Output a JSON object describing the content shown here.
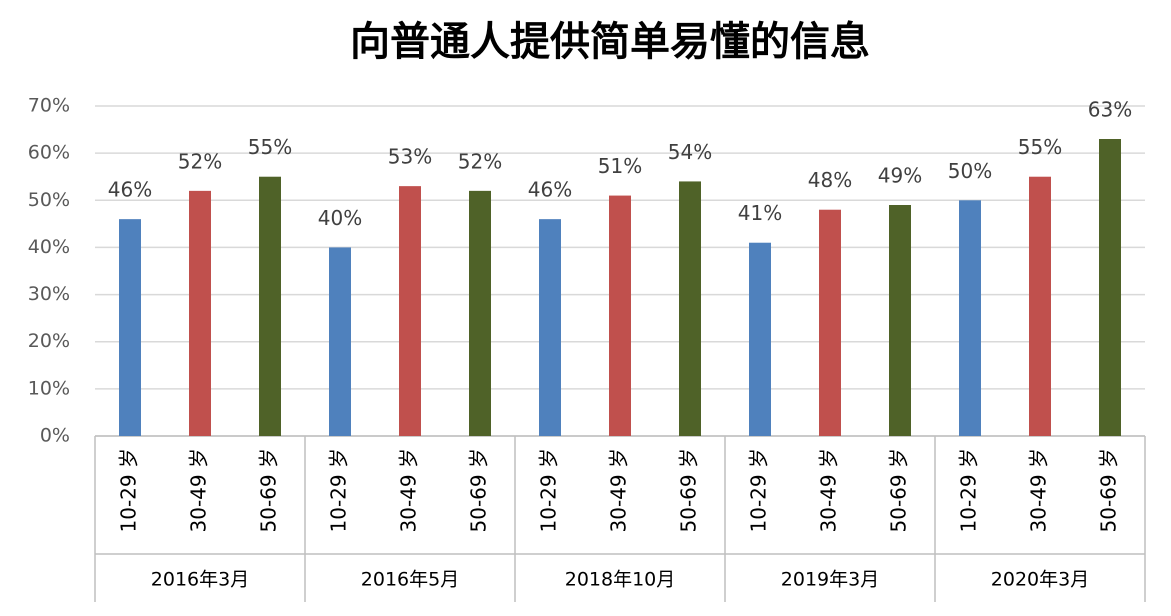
{
  "chart_data": {
    "type": "bar",
    "title": "向普通人提供简单易懂的信息",
    "categories": [
      "2016年3月",
      "2016年5月",
      "2018年10月",
      "2019年3月",
      "2020年3月"
    ],
    "series": [
      {
        "name": "10-29 岁",
        "color": "#4f81bd",
        "values": [
          46,
          40,
          46,
          41,
          50
        ],
        "value_labels": [
          "46%",
          "40%",
          "46%",
          "41%",
          "50%"
        ]
      },
      {
        "name": "30-49 岁",
        "color": "#c0504d",
        "values": [
          52,
          53,
          51,
          48,
          55
        ],
        "value_labels": [
          "52%",
          "53%",
          "51%",
          "48%",
          "55%"
        ]
      },
      {
        "name": "50-69 岁",
        "color": "#4f6228",
        "values": [
          55,
          52,
          54,
          49,
          63
        ],
        "value_labels": [
          "55%",
          "52%",
          "54%",
          "49%",
          "63%"
        ]
      }
    ],
    "ylim": [
      0,
      70
    ],
    "yticks": [
      {
        "value": 0,
        "label": "0%"
      },
      {
        "value": 10,
        "label": "10%"
      },
      {
        "value": 20,
        "label": "20%"
      },
      {
        "value": 30,
        "label": "30%"
      },
      {
        "value": 40,
        "label": "40%"
      },
      {
        "value": 50,
        "label": "50%"
      },
      {
        "value": 60,
        "label": "60%"
      },
      {
        "value": 70,
        "label": "70%"
      }
    ],
    "grid": true
  }
}
